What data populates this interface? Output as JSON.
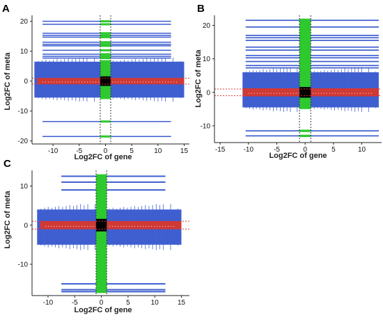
{
  "colors": {
    "blue_points": "#3f5fd0",
    "red_points": "#d03a35",
    "green_points": "#2ec92e",
    "black_core": "#000000",
    "white_center": "#ffffff",
    "axis": "#222222"
  },
  "chart_data": [
    {
      "type": "scatter",
      "panel": "A",
      "xlabel": "Log2FC of gene",
      "ylabel": "Log2FC of meta",
      "xlim": [
        -14,
        16
      ],
      "ylim": [
        -21,
        22
      ],
      "x_ticks": [
        -10,
        -5,
        0,
        5,
        10,
        15
      ],
      "y_ticks": [
        -20,
        -10,
        0,
        10,
        20
      ],
      "thresholds": {
        "x": [
          -1,
          1
        ],
        "y": [
          -1,
          1
        ]
      },
      "main_band": {
        "x": [
          -13.5,
          15
        ],
        "y": [
          -5.5,
          6.5
        ]
      },
      "red_band": {
        "x": [
          -13,
          15
        ],
        "y": [
          -1,
          1
        ]
      },
      "green_band": {
        "x": [
          -1,
          1
        ],
        "y": [
          -6,
          7
        ]
      },
      "black_core": {
        "x": [
          -1,
          1
        ],
        "y": [
          -1,
          1
        ]
      },
      "stripes_y": [
        20,
        19,
        16,
        15.3,
        14.7,
        13,
        12.3,
        11.8,
        10.3,
        9,
        8.3,
        7.7,
        -13.5,
        -18.5
      ],
      "stripe_x": [
        -12,
        12.5
      ]
    },
    {
      "type": "scatter",
      "panel": "B",
      "xlabel": "Log2FC of gene",
      "ylabel": "Log2FC of meta",
      "xlim": [
        -16,
        13.5
      ],
      "ylim": [
        -15,
        23
      ],
      "x_ticks": [
        -15,
        -10,
        -5,
        0,
        5,
        10
      ],
      "y_ticks": [
        -10,
        0,
        10,
        20
      ],
      "thresholds": {
        "x": [
          -1,
          1
        ],
        "y": [
          -1,
          1
        ]
      },
      "main_band": {
        "x": [
          -11,
          13
        ],
        "y": [
          -4.5,
          6
        ]
      },
      "red_band": {
        "x": [
          -11,
          13
        ],
        "y": [
          -1.2,
          1.2
        ]
      },
      "green_band": {
        "x": [
          -1,
          1
        ],
        "y": [
          -5,
          22
        ]
      },
      "black_core": {
        "x": [
          -1,
          1
        ],
        "y": [
          -1,
          1
        ]
      },
      "stripes_y": [
        21.5,
        19.5,
        17,
        16.3,
        15.5,
        13.5,
        12.6,
        11,
        10.3,
        9.2,
        8,
        7.3,
        -11.5,
        -13
      ],
      "stripe_x": [
        -10.5,
        13
      ]
    },
    {
      "type": "scatter",
      "panel": "C",
      "xlabel": "Log2FC of gene",
      "ylabel": "Log2FC of meta",
      "xlim": [
        -13,
        16.5
      ],
      "ylim": [
        -18,
        14
      ],
      "x_ticks": [
        -10,
        -5,
        0,
        5,
        10,
        15
      ],
      "y_ticks": [
        -10,
        0,
        10
      ],
      "thresholds": {
        "x": [
          -1,
          1
        ],
        "y": [
          -1,
          1
        ]
      },
      "main_band": {
        "x": [
          -12,
          15
        ],
        "y": [
          -5,
          4
        ]
      },
      "red_band": {
        "x": [
          -11.5,
          15
        ],
        "y": [
          -1,
          1
        ]
      },
      "green_band": {
        "x": [
          -1,
          1
        ],
        "y": [
          -17,
          13
        ]
      },
      "black_core": {
        "x": [
          -1,
          1
        ],
        "y": [
          -1,
          1
        ]
      },
      "stripes_y": [
        12.5,
        11,
        9,
        -15,
        -16.5,
        -17
      ],
      "stripe_x": [
        -7.5,
        12
      ]
    }
  ]
}
